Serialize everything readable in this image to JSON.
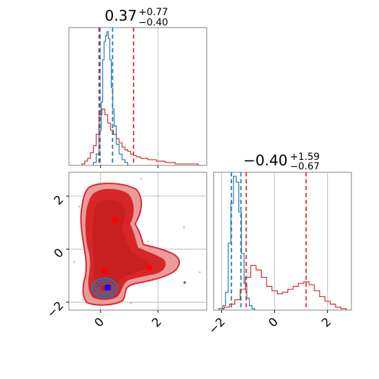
{
  "colors": {
    "red": "#d62728",
    "red_light": "#ec9b9b",
    "blue": "#1f77b4",
    "blue_light": "#8fb8d8",
    "marker_red": "#ff0000",
    "marker_blue": "#0000ff",
    "grid": "#b0b0b0",
    "frame": "#7f7f7f"
  },
  "chart_data": [
    {
      "panel": "top-left",
      "type": "histogram",
      "title": {
        "value": "0.37",
        "plus": "+0.77",
        "minus": "−0.40"
      },
      "xlim": [
        -1.1,
        3.7
      ],
      "grid": true,
      "ticks": [
        0,
        2
      ],
      "series": [
        {
          "color": "red",
          "lines_x": [
            -0.05,
            1.15
          ],
          "x": [
            -0.6,
            -0.5,
            -0.4,
            -0.3,
            -0.2,
            -0.1,
            0.0,
            0.1,
            0.2,
            0.3,
            0.4,
            0.5,
            0.6,
            0.7,
            0.8,
            0.9,
            1.0,
            1.1,
            1.2,
            1.3,
            1.5,
            1.8,
            2.1,
            2.4,
            2.8,
            3.2
          ],
          "y": [
            0.01,
            0.03,
            0.05,
            0.09,
            0.14,
            0.22,
            0.36,
            0.4,
            0.36,
            0.3,
            0.25,
            0.22,
            0.19,
            0.16,
            0.13,
            0.11,
            0.1,
            0.08,
            0.07,
            0.06,
            0.05,
            0.04,
            0.03,
            0.02,
            0.01,
            0.01
          ]
        },
        {
          "color": "blue",
          "lines_x": [
            -0.02,
            0.42
          ],
          "x": [
            -0.2,
            -0.1,
            0.0,
            0.05,
            0.1,
            0.15,
            0.2,
            0.25,
            0.3,
            0.35,
            0.4,
            0.45,
            0.5,
            0.6,
            0.7,
            0.8,
            0.9
          ],
          "y": [
            0.02,
            0.08,
            0.25,
            0.45,
            0.75,
            0.88,
            0.92,
            0.95,
            0.9,
            0.75,
            0.55,
            0.4,
            0.28,
            0.15,
            0.08,
            0.04,
            0.02
          ]
        }
      ]
    },
    {
      "panel": "bottom-right",
      "type": "histogram",
      "title": {
        "value": "−0.40",
        "plus": "+1.59",
        "minus": "−0.67"
      },
      "xlim": [
        -2.3,
        2.9
      ],
      "grid": true,
      "ticks": [
        -2,
        0,
        2
      ],
      "series": [
        {
          "color": "red",
          "lines_x": [
            -1.07,
            1.19
          ],
          "x": [
            -2.0,
            -1.8,
            -1.6,
            -1.4,
            -1.2,
            -1.0,
            -0.8,
            -0.6,
            -0.4,
            -0.2,
            0.0,
            0.2,
            0.4,
            0.6,
            0.8,
            1.0,
            1.2,
            1.4,
            1.6,
            1.8,
            2.0,
            2.2,
            2.4,
            2.6
          ],
          "y": [
            0.01,
            0.02,
            0.04,
            0.07,
            0.14,
            0.22,
            0.3,
            0.27,
            0.22,
            0.16,
            0.13,
            0.11,
            0.12,
            0.14,
            0.16,
            0.18,
            0.19,
            0.17,
            0.13,
            0.09,
            0.06,
            0.04,
            0.02,
            0.01
          ]
        },
        {
          "color": "blue",
          "lines_x": [
            -1.63,
            -1.27
          ],
          "x": [
            -1.9,
            -1.8,
            -1.7,
            -1.6,
            -1.5,
            -1.4,
            -1.3,
            -1.2,
            -1.1,
            -1.0,
            -0.9,
            -0.8
          ],
          "y": [
            0.03,
            0.12,
            0.45,
            0.72,
            0.9,
            0.86,
            0.66,
            0.38,
            0.18,
            0.08,
            0.03,
            0.01
          ]
        }
      ]
    },
    {
      "panel": "bottom-left",
      "type": "scatter",
      "xlim": [
        -1.1,
        3.7
      ],
      "ylim": [
        -2.3,
        2.9
      ],
      "grid": true,
      "xticks": [
        0,
        2
      ],
      "yticks": [
        -2,
        0,
        2
      ],
      "markers": [
        {
          "color": "red",
          "x": 0.5,
          "y": 1.1
        },
        {
          "color": "red",
          "x": 0.15,
          "y": -0.85
        },
        {
          "color": "red",
          "x": 1.7,
          "y": -0.7
        },
        {
          "color": "red",
          "x": 0.25,
          "y": -1.45
        },
        {
          "color": "blue",
          "x": 0.25,
          "y": -1.45
        }
      ]
    }
  ]
}
